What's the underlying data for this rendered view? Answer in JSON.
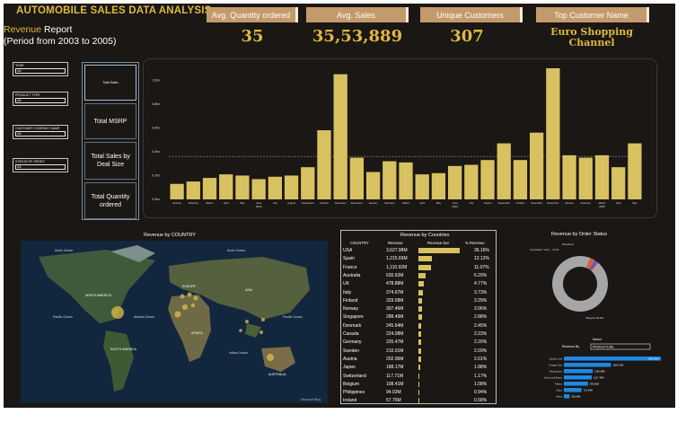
{
  "header": {
    "title": "AUTOMOBILE SALES DATA ANALYSIS",
    "subtitle_accent": "Revenue",
    "subtitle_rest": " Report",
    "subtitle_line2": "(Period from 2003 to 2005)"
  },
  "kpis": [
    {
      "label": "Avg. Quantity ordered",
      "value": "35"
    },
    {
      "label": "Avg. Sales",
      "value": "35,53,889"
    },
    {
      "label": "Unique Customers",
      "value": "307"
    },
    {
      "label": "Top Customer Name",
      "value": "Euro Shopping Channel"
    }
  ],
  "slicers": [
    {
      "label": "YEAR",
      "value": "All"
    },
    {
      "label": "PRODUCT TYPE",
      "value": "All"
    },
    {
      "label": "CUSTOMER COMPANY NAME",
      "value": "All"
    },
    {
      "label": "STATUS OF ORDER",
      "value": "All"
    }
  ],
  "measures": [
    "Total Sales",
    "Total MSRP",
    "Total Sales by Deal Size",
    "Total Quantity ordered"
  ],
  "colors": {
    "gold": "#e0b93e",
    "bar": "#d8c160",
    "blue": "#1e88e5",
    "donut": "#a6a6a6"
  },
  "chart_data": [
    {
      "type": "bar",
      "title": "",
      "y_tick_labels": [
        "0.0bn",
        "0.2bn",
        "0.4bn",
        "0.6bn",
        "0.8bn",
        "1.0bn"
      ],
      "ylim": [
        0,
        1.1
      ],
      "average_line": 0.36,
      "categories": [
        "January",
        "February",
        "March",
        "April",
        "May",
        "June",
        "July",
        "August",
        "September",
        "October",
        "November",
        "December",
        "January",
        "February",
        "March",
        "April",
        "May",
        "June",
        "July",
        "August",
        "September",
        "October",
        "November",
        "December",
        "January",
        "February",
        "March",
        "April",
        "May"
      ],
      "year_labels": [
        {
          "label": "2003",
          "index": 5
        },
        {
          "label": "2004",
          "index": 17
        },
        {
          "label": "2005",
          "index": 26
        }
      ],
      "values": [
        0.13,
        0.15,
        0.18,
        0.21,
        0.2,
        0.17,
        0.19,
        0.2,
        0.27,
        0.58,
        1.05,
        0.35,
        0.23,
        0.32,
        0.31,
        0.21,
        0.22,
        0.28,
        0.29,
        0.33,
        0.47,
        0.33,
        0.56,
        1.1,
        0.37,
        0.35,
        0.37,
        0.27,
        0.47
      ]
    },
    {
      "type": "table",
      "title": "Revenue by Countries",
      "columns": [
        "COUNTRY",
        "Revenue",
        "Revenue bar",
        "% Revenue"
      ],
      "rows": [
        [
          "USA",
          "3,627.98M",
          36.16,
          "36.16%"
        ],
        [
          "Spain",
          "1,215.69M",
          12.12,
          "12.12%"
        ],
        [
          "France",
          "1,110.92M",
          11.07,
          "11.07%"
        ],
        [
          "Australia",
          "630.62M",
          6.29,
          "6.29%"
        ],
        [
          "UK",
          "478.88M",
          4.77,
          "4.77%"
        ],
        [
          "Italy",
          "374.67M",
          3.73,
          "3.73%"
        ],
        [
          "Finland",
          "329.58M",
          3.29,
          "3.29%"
        ],
        [
          "Norway",
          "307.46M",
          3.06,
          "3.06%"
        ],
        [
          "Singapore",
          "288.49M",
          2.88,
          "2.88%"
        ],
        [
          "Denmark",
          "245.64M",
          2.45,
          "2.45%"
        ],
        [
          "Canada",
          "224.08M",
          2.23,
          "2.23%"
        ],
        [
          "Germany",
          "220.47M",
          2.2,
          "2.20%"
        ],
        [
          "Sweden",
          "210.01M",
          2.09,
          "2.09%"
        ],
        [
          "Austria",
          "202.06M",
          2.01,
          "2.01%"
        ],
        [
          "Japan",
          "188.17M",
          1.88,
          "1.88%"
        ],
        [
          "Switzerland",
          "117.71M",
          1.17,
          "1.17%"
        ],
        [
          "Belgium",
          "108.41M",
          1.08,
          "1.08%"
        ],
        [
          "Philippines",
          "94.02M",
          0.94,
          "0.94%"
        ],
        [
          "Ireland",
          "57.76M",
          0.58,
          "0.58%"
        ]
      ]
    },
    {
      "type": "pie",
      "title": "Revenue by Order Status",
      "slices": [
        {
          "name": "Shipped",
          "value": 93.6,
          "color": "#a6a6a6"
        },
        {
          "name": "Cancelled",
          "value": 3.0,
          "color": "#e05f2e"
        },
        {
          "name": "Resolved",
          "value": 1.5,
          "color": "#2d6fd6"
        },
        {
          "name": "On Hold",
          "value": 1.2,
          "color": "#b04ad9"
        },
        {
          "name": "In Process",
          "value": 0.7,
          "color": "#f2c23c"
        }
      ],
      "label_left": "Cancelled, Yield ... 8.2%",
      "label_top": "Resolved",
      "label_bottom": "Shipped 93.6%"
    },
    {
      "type": "bar",
      "title": "Revenue By",
      "select_label": "Select",
      "select_value": "PRODUCTLINE",
      "categories": [
        "Classic Cars",
        "Vintage Cars",
        "Motorcycles",
        "Trucks and Buses",
        "Planes",
        "Ships",
        "Trains"
      ],
      "values": [
        3919.62,
        1903.15,
        1166.39,
        1127.79,
        975.0,
        714.44,
        226.24
      ],
      "value_labels": [
        "3919.62M",
        "1903.15M",
        "1166.39M",
        "1127.79M",
        "975.00M",
        "714.44M",
        "226.24M"
      ]
    }
  ],
  "map": {
    "title": "Revenue by COUNTRY",
    "labels": [
      "Arctic Ocean",
      "Arctic Ocean",
      "NORTH AMERICA",
      "EUROPE",
      "ASIA",
      "Atlantic Ocean",
      "Pacific Ocean",
      "Pacific Ocean",
      "AFRICA",
      "SOUTH AMERICA",
      "Indian Ocean",
      "AUSTRALIA"
    ],
    "attribution": "Microsoft Bing"
  }
}
